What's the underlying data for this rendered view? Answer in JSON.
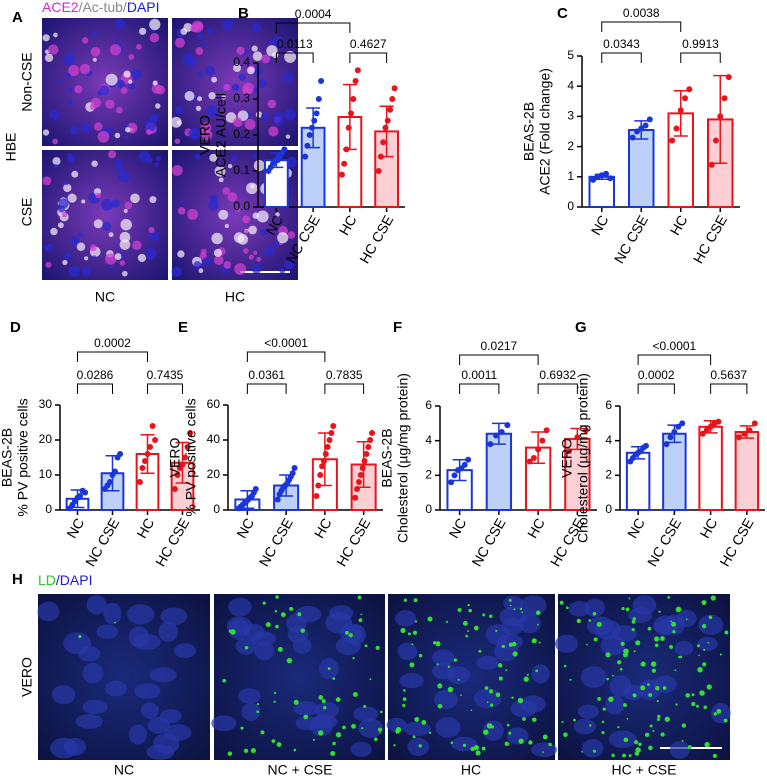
{
  "images": {
    "A": {
      "label": "A",
      "stains": [
        "ACE2",
        "/Ac-tub/",
        "DAPI"
      ],
      "rows": [
        "Non-CSE",
        "CSE"
      ],
      "row_group": "HBE",
      "columns": [
        "NC",
        "HC"
      ]
    },
    "H": {
      "label": "H",
      "stains": [
        "LD",
        "/DAPI"
      ],
      "row": "VERO",
      "columns": [
        "NC",
        "NC + CSE",
        "HC",
        "HC + CSE"
      ]
    }
  },
  "chart_data": [
    {
      "type": "bar",
      "panel": "B",
      "ylabel": [
        "VERO",
        "ACE2 AU/cell"
      ],
      "categories": [
        "NC",
        "NC CSE",
        "HC",
        "HC CSE"
      ],
      "values": [
        0.13,
        0.22,
        0.25,
        0.21
      ],
      "errors": [
        0.02,
        0.055,
        0.09,
        0.07
      ],
      "points": [
        [
          0.1,
          0.11,
          0.12,
          0.13,
          0.13,
          0.14,
          0.15,
          0.16
        ],
        [
          0.14,
          0.17,
          0.2,
          0.22,
          0.24,
          0.26,
          0.3,
          0.35
        ],
        [
          0.09,
          0.12,
          0.16,
          0.22,
          0.26,
          0.3,
          0.35,
          0.38
        ],
        [
          0.1,
          0.14,
          0.18,
          0.22,
          0.24,
          0.27,
          0.3,
          0.33
        ]
      ],
      "colors": [
        "#1a35d8",
        "#1a35d8",
        "#e8141c",
        "#e8141c"
      ],
      "fills": [
        "#ffffff",
        "#bdd0f7",
        "#ffffff",
        "#fbcfd3"
      ],
      "ylim": [
        0,
        0.4
      ],
      "yticks": [
        {
          "value": 0,
          "label": "0.0"
        },
        0.1,
        0.2,
        0.3,
        0.4
      ],
      "comparisons": [
        {
          "pair": [
            "NC",
            "HC"
          ],
          "label": "0.0004"
        },
        {
          "pair": [
            "NC",
            "NC CSE"
          ],
          "label": "0.0113"
        },
        {
          "pair": [
            "HC",
            "HC CSE"
          ],
          "label": "0.4627"
        }
      ]
    },
    {
      "type": "bar",
      "panel": "C",
      "ylabel": [
        "BEAS-2B",
        "ACE2 (Fold change)"
      ],
      "categories": [
        "NC",
        "NC CSE",
        "HC",
        "HC CSE"
      ],
      "values": [
        1.0,
        2.55,
        3.1,
        2.9
      ],
      "errors": [
        0.08,
        0.3,
        0.75,
        1.45
      ],
      "points": [
        [
          0.9,
          1.0,
          1.05,
          1.1,
          0.95
        ],
        [
          2.3,
          2.5,
          2.6,
          2.7,
          2.9
        ],
        [
          2.2,
          2.6,
          3.2,
          3.6,
          3.9
        ],
        [
          1.4,
          2.2,
          3.0,
          3.6,
          4.3
        ]
      ],
      "colors": [
        "#1a35d8",
        "#1a35d8",
        "#e8141c",
        "#e8141c"
      ],
      "fills": [
        "#ffffff",
        "#bdd0f7",
        "#ffffff",
        "#fbcfd3"
      ],
      "ylim": [
        0,
        5
      ],
      "yticks": [
        0,
        1,
        2,
        3,
        4,
        5
      ],
      "comparisons": [
        {
          "pair": [
            "NC",
            "HC"
          ],
          "label": "0.0038"
        },
        {
          "pair": [
            "NC",
            "NC CSE"
          ],
          "label": "0.0343"
        },
        {
          "pair": [
            "HC",
            "HC CSE"
          ],
          "label": "0.9913"
        }
      ]
    },
    {
      "type": "bar",
      "panel": "D",
      "ylabel": [
        "BEAS-2B",
        "% PV positive cells"
      ],
      "categories": [
        "NC",
        "NC CSE",
        "HC",
        "HC CSE"
      ],
      "values": [
        3.2,
        10.5,
        16,
        13.5
      ],
      "errors": [
        2.5,
        5,
        5.5,
        5.8
      ],
      "points": [
        [
          0.5,
          1.5,
          2.5,
          3.5,
          4,
          5.5,
          5
        ],
        [
          6,
          7,
          8,
          10,
          11,
          15,
          16
        ],
        [
          8,
          12,
          14,
          16,
          18,
          24,
          20
        ],
        [
          6,
          10,
          12,
          13,
          15,
          18,
          22
        ]
      ],
      "colors": [
        "#1a35d8",
        "#1a35d8",
        "#e8141c",
        "#e8141c"
      ],
      "fills": [
        "#ffffff",
        "#bdd0f7",
        "#ffffff",
        "#fbcfd3"
      ],
      "ylim": [
        0,
        30
      ],
      "yticks": [
        0,
        10,
        20,
        30
      ],
      "comparisons": [
        {
          "pair": [
            "NC",
            "HC"
          ],
          "label": "0.0002"
        },
        {
          "pair": [
            "NC",
            "NC CSE"
          ],
          "label": "0.0286"
        },
        {
          "pair": [
            "HC",
            "HC CSE"
          ],
          "label": "0.7435"
        }
      ]
    },
    {
      "type": "bar",
      "panel": "E",
      "ylabel": [
        "VERO",
        "% PV positive cells"
      ],
      "categories": [
        "NC",
        "NC CSE",
        "HC",
        "HC CSE"
      ],
      "values": [
        6,
        14,
        29,
        26
      ],
      "errors": [
        5,
        6,
        15,
        13
      ],
      "points": [
        [
          1,
          2,
          3,
          4,
          5,
          6,
          7,
          8,
          10,
          12
        ],
        [
          6,
          9,
          11,
          13,
          14,
          15,
          17,
          19,
          21,
          24
        ],
        [
          8,
          14,
          20,
          25,
          28,
          32,
          36,
          40,
          44,
          48
        ],
        [
          7,
          12,
          16,
          20,
          24,
          28,
          32,
          36,
          40,
          44
        ]
      ],
      "colors": [
        "#1a35d8",
        "#1a35d8",
        "#e8141c",
        "#e8141c"
      ],
      "fills": [
        "#ffffff",
        "#bdd0f7",
        "#ffffff",
        "#fbcfd3"
      ],
      "ylim": [
        0,
        60
      ],
      "yticks": [
        0,
        20,
        40,
        60
      ],
      "comparisons": [
        {
          "pair": [
            "NC",
            "HC"
          ],
          "label": "<0.0001"
        },
        {
          "pair": [
            "NC",
            "NC CSE"
          ],
          "label": "0.0361"
        },
        {
          "pair": [
            "HC",
            "HC CSE"
          ],
          "label": "0.7835"
        }
      ]
    },
    {
      "type": "bar",
      "panel": "F",
      "ylabel": [
        "BEAS-2B",
        "Cholesterol (µg/mg protein)"
      ],
      "categories": [
        "NC",
        "NC CSE",
        "HC",
        "HC CSE"
      ],
      "values": [
        2.3,
        4.4,
        3.6,
        4.1
      ],
      "errors": [
        0.6,
        0.6,
        0.9,
        0.6
      ],
      "points": [
        [
          1.6,
          2.0,
          2.3,
          2.4,
          2.6,
          2.9
        ],
        [
          3.8,
          4.3,
          4.5,
          4.9
        ],
        [
          2.8,
          3.0,
          3.5,
          4.0,
          4.6
        ],
        [
          3.4,
          4.2,
          4.6
        ]
      ],
      "colors": [
        "#1a35d8",
        "#1a35d8",
        "#e8141c",
        "#e8141c"
      ],
      "fills": [
        "#ffffff",
        "#bdd0f7",
        "#ffffff",
        "#fbcfd3"
      ],
      "ylim": [
        0,
        6
      ],
      "yticks": [
        0,
        2,
        4,
        6
      ],
      "comparisons": [
        {
          "pair": [
            "NC",
            "HC"
          ],
          "label": "0.0217"
        },
        {
          "pair": [
            "NC",
            "NC CSE"
          ],
          "label": "0.0011"
        },
        {
          "pair": [
            "HC",
            "HC CSE"
          ],
          "label": "0.6932"
        }
      ]
    },
    {
      "type": "bar",
      "panel": "G",
      "ylabel": [
        "VERO",
        "Cholesterol (µg/mg protein)"
      ],
      "categories": [
        "NC",
        "NC CSE",
        "HC",
        "HC CSE"
      ],
      "values": [
        3.3,
        4.4,
        4.8,
        4.5
      ],
      "errors": [
        0.35,
        0.5,
        0.35,
        0.35
      ],
      "points": [
        [
          2.8,
          3.0,
          3.2,
          3.3,
          3.4,
          3.6,
          3.7
        ],
        [
          3.8,
          4.2,
          4.5,
          4.8,
          5.0
        ],
        [
          4.4,
          4.6,
          4.8,
          5.0,
          5.1
        ],
        [
          4.2,
          4.4,
          4.6,
          5.0
        ]
      ],
      "colors": [
        "#1a35d8",
        "#1a35d8",
        "#e8141c",
        "#e8141c"
      ],
      "fills": [
        "#ffffff",
        "#bdd0f7",
        "#ffffff",
        "#fbcfd3"
      ],
      "ylim": [
        0,
        6
      ],
      "yticks": [
        0,
        2,
        4,
        6
      ],
      "comparisons": [
        {
          "pair": [
            "NC",
            "HC"
          ],
          "label": "<0.0001"
        },
        {
          "pair": [
            "NC",
            "NC CSE"
          ],
          "label": "0.0002"
        },
        {
          "pair": [
            "HC",
            "HC CSE"
          ],
          "label": "0.5637"
        }
      ]
    }
  ]
}
